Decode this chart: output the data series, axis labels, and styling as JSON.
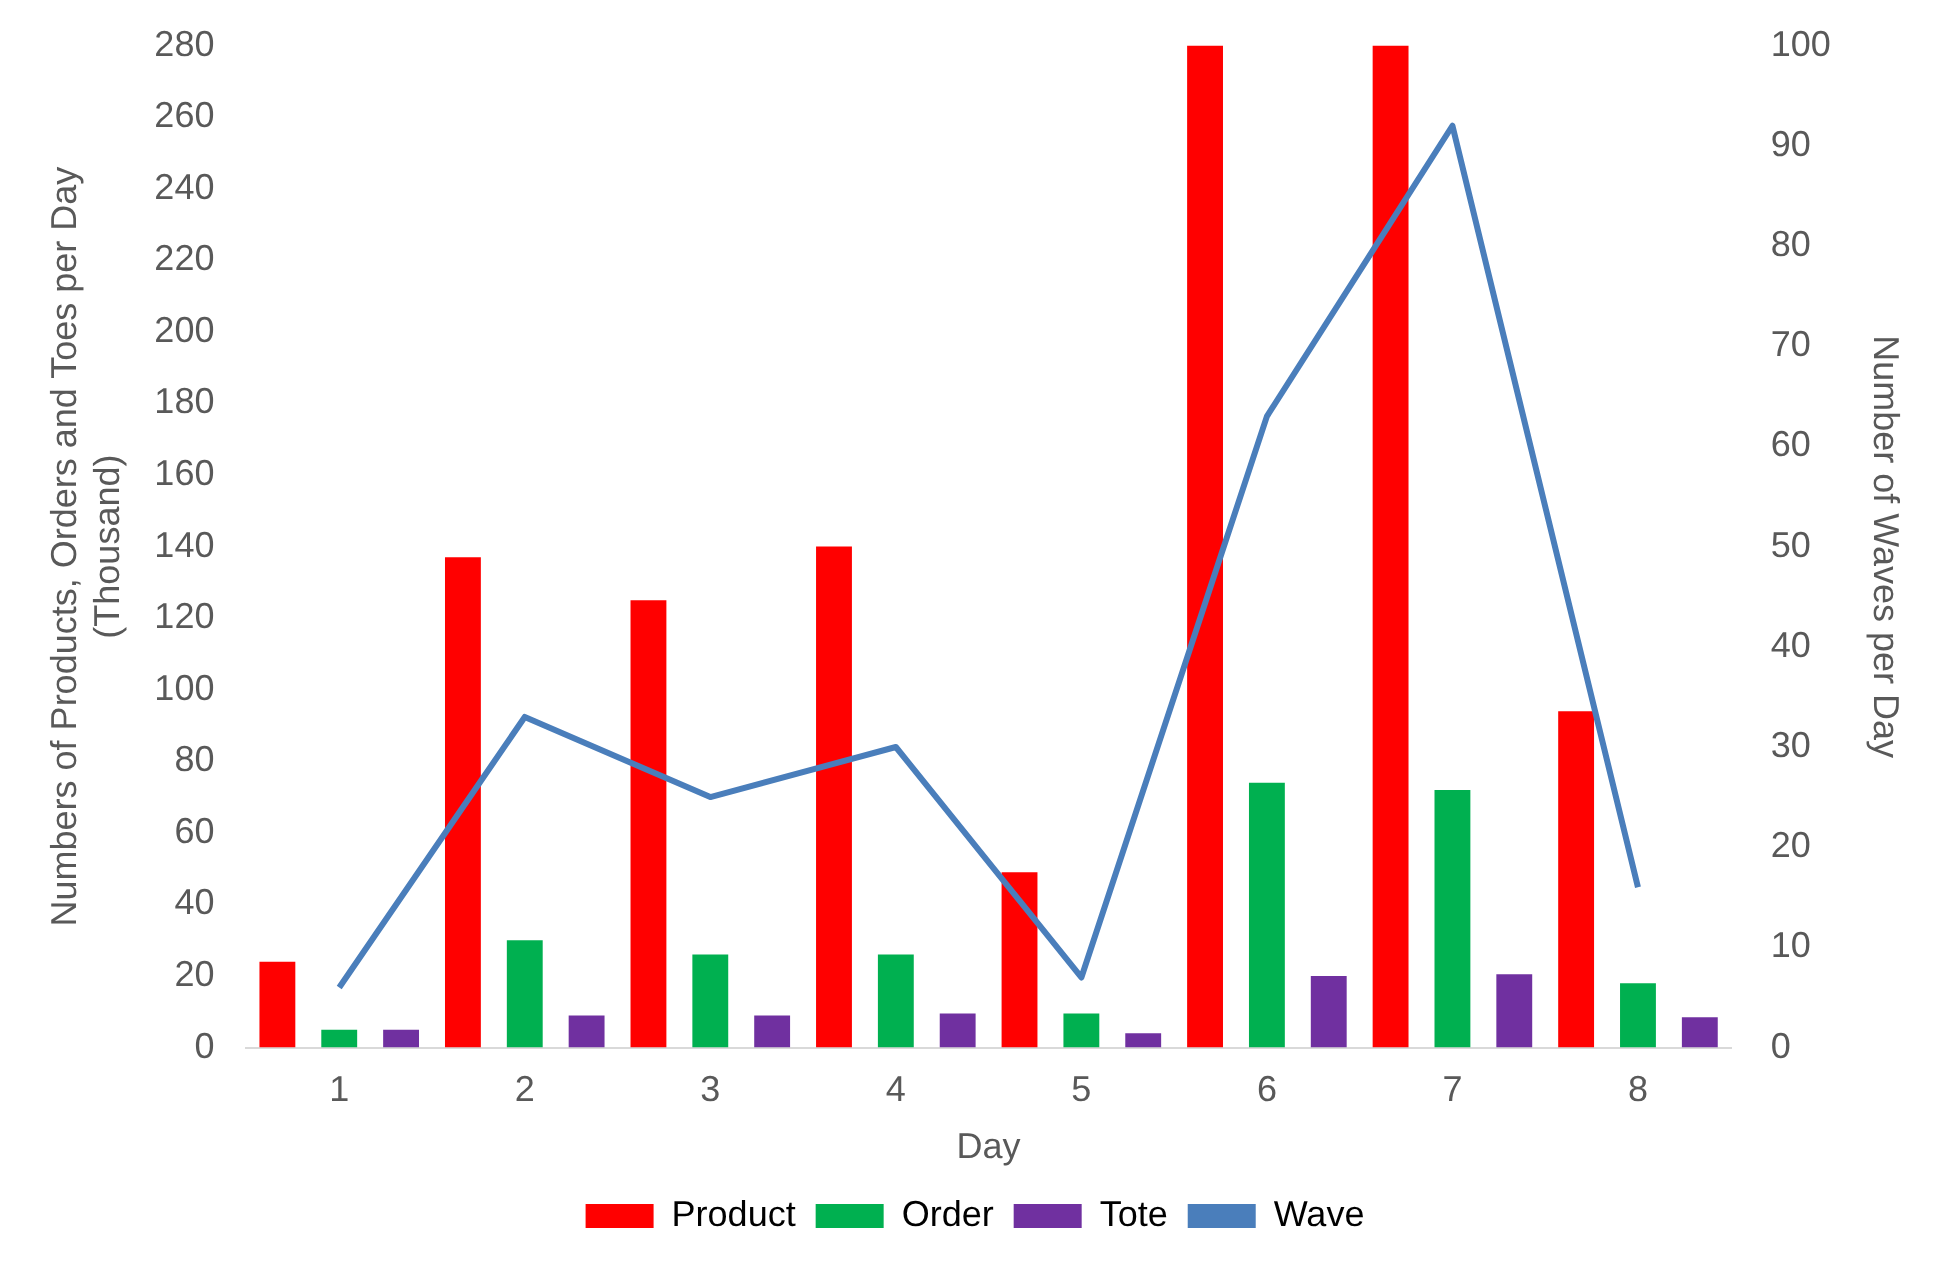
{
  "chart_data": {
    "type": "bar",
    "xlabel": "Day",
    "ylabel": "Numbers of Products, Orders and Toes per Day (Thousand)",
    "y2label": "Number of Waves per Day",
    "categories": [
      "1",
      "2",
      "3",
      "4",
      "5",
      "6",
      "7",
      "8"
    ],
    "series": [
      {
        "name": "Product",
        "color": "#ff0000",
        "values": [
          24,
          137,
          125,
          140,
          49,
          280,
          280,
          94
        ]
      },
      {
        "name": "Order",
        "color": "#00b050",
        "values": [
          5,
          30,
          26,
          26,
          9.5,
          74,
          72,
          18
        ]
      },
      {
        "name": "Tote",
        "color": "#7030a0",
        "values": [
          5,
          9,
          9,
          9.5,
          4,
          20,
          20.5,
          8.5
        ]
      },
      {
        "name": "Wave",
        "type": "line",
        "axis": "y2",
        "color": "#4a7ebb",
        "values": [
          6,
          33,
          25,
          30,
          7,
          63,
          92,
          16
        ]
      }
    ],
    "ylim": [
      0,
      280
    ],
    "yticks": [
      0,
      20,
      40,
      60,
      80,
      100,
      120,
      140,
      160,
      180,
      200,
      220,
      240,
      260,
      280
    ],
    "y2lim": [
      0,
      100
    ],
    "y2ticks": [
      0,
      10,
      20,
      30,
      40,
      50,
      60,
      70,
      80,
      90,
      100
    ],
    "grid": false,
    "legend": "bottom",
    "marker": "none"
  }
}
